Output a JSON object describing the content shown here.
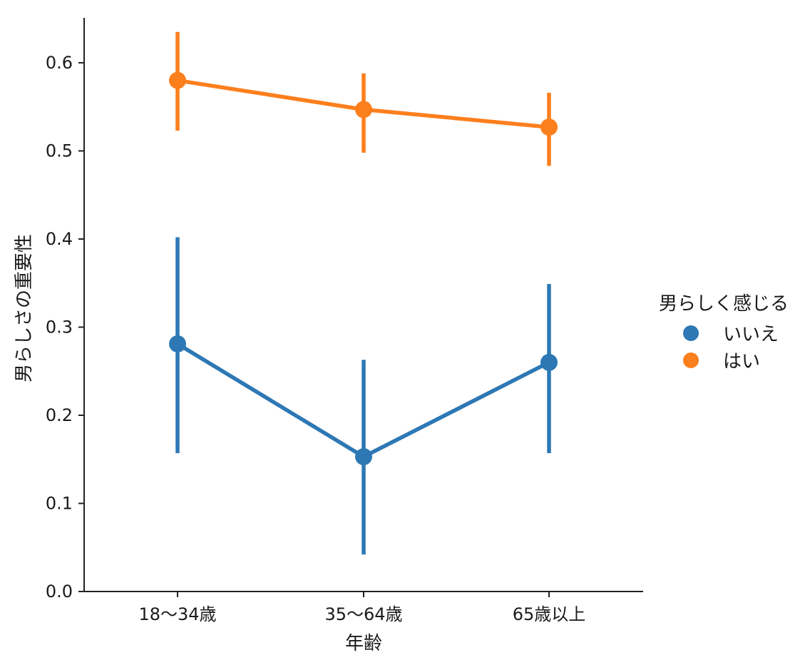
{
  "chart_data": {
    "type": "line",
    "title": "",
    "xlabel": "年齢",
    "ylabel": "男らしさの重要性",
    "categories": [
      "18〜34歳",
      "35〜64歳",
      "65歳以上"
    ],
    "ylim": [
      0.0,
      0.65
    ],
    "yticks": [
      "0.0",
      "0.1",
      "0.2",
      "0.3",
      "0.4",
      "0.5",
      "0.6"
    ],
    "grid": false,
    "legend": {
      "title": "男らしく感じる",
      "placement": "center-right"
    },
    "series": [
      {
        "name": "いいえ",
        "color": "#2d78b4",
        "values": [
          0.281,
          0.153,
          0.26
        ],
        "ci_low": [
          0.157,
          0.042,
          0.157
        ],
        "ci_high": [
          0.402,
          0.263,
          0.349
        ]
      },
      {
        "name": "はい",
        "color": "#fc7f1d",
        "values": [
          0.58,
          0.547,
          0.527
        ],
        "ci_low": [
          0.523,
          0.498,
          0.483
        ],
        "ci_high": [
          0.635,
          0.588,
          0.566
        ]
      }
    ]
  }
}
